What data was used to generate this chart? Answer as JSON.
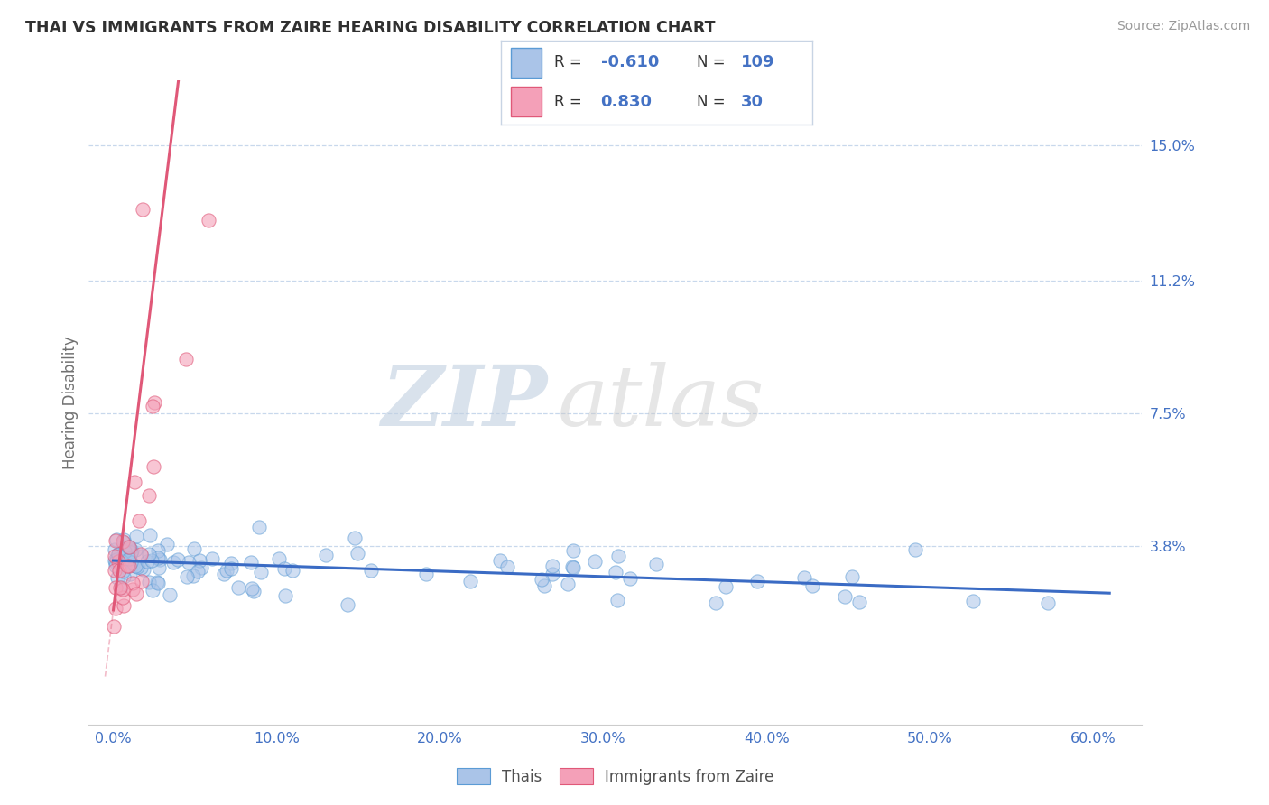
{
  "title": "THAI VS IMMIGRANTS FROM ZAIRE HEARING DISABILITY CORRELATION CHART",
  "source": "Source: ZipAtlas.com",
  "ylabel": "Hearing Disability",
  "xlim": [
    -1.5,
    63.0
  ],
  "ylim": [
    -1.2,
    16.8
  ],
  "ytick_vals": [
    3.8,
    7.5,
    11.2,
    15.0
  ],
  "ytick_labels": [
    "3.8%",
    "7.5%",
    "11.2%",
    "15.0%"
  ],
  "xtick_vals": [
    0,
    10,
    20,
    30,
    40,
    50,
    60
  ],
  "xtick_labels": [
    "0.0%",
    "10.0%",
    "20.0%",
    "30.0%",
    "40.0%",
    "50.0%",
    "60.0%"
  ],
  "series1_name": "Thais",
  "series1_R": "-0.610",
  "series1_N": "109",
  "series1_color": "#aac4e8",
  "series1_edge_color": "#5b9bd5",
  "series1_trend_color": "#3a6bc4",
  "series2_name": "Immigrants from Zaire",
  "series2_R": "0.830",
  "series2_N": "30",
  "series2_color": "#f4a0b8",
  "series2_edge_color": "#e05878",
  "series2_trend_color": "#e05878",
  "grid_color": "#c8d8ec",
  "title_color": "#303030",
  "axis_color": "#4472c4",
  "background_color": "#ffffff",
  "legend_text_color": "#4472c4",
  "seed": 42
}
